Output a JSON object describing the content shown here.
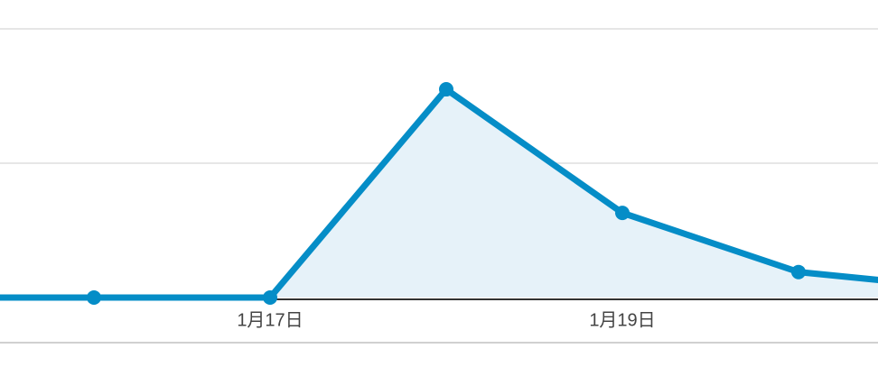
{
  "chart_data": {
    "type": "area",
    "categories": [
      null,
      null,
      "1月17日",
      null,
      "1月19日",
      null,
      null
    ],
    "values": [
      0,
      0,
      0,
      1.55,
      0.63,
      0.19,
      0.06
    ],
    "color": "#058dc7",
    "fill": "#e6f2f9",
    "ylim": [
      0,
      2
    ],
    "yticks": [
      0,
      1,
      2
    ],
    "grid": true
  }
}
